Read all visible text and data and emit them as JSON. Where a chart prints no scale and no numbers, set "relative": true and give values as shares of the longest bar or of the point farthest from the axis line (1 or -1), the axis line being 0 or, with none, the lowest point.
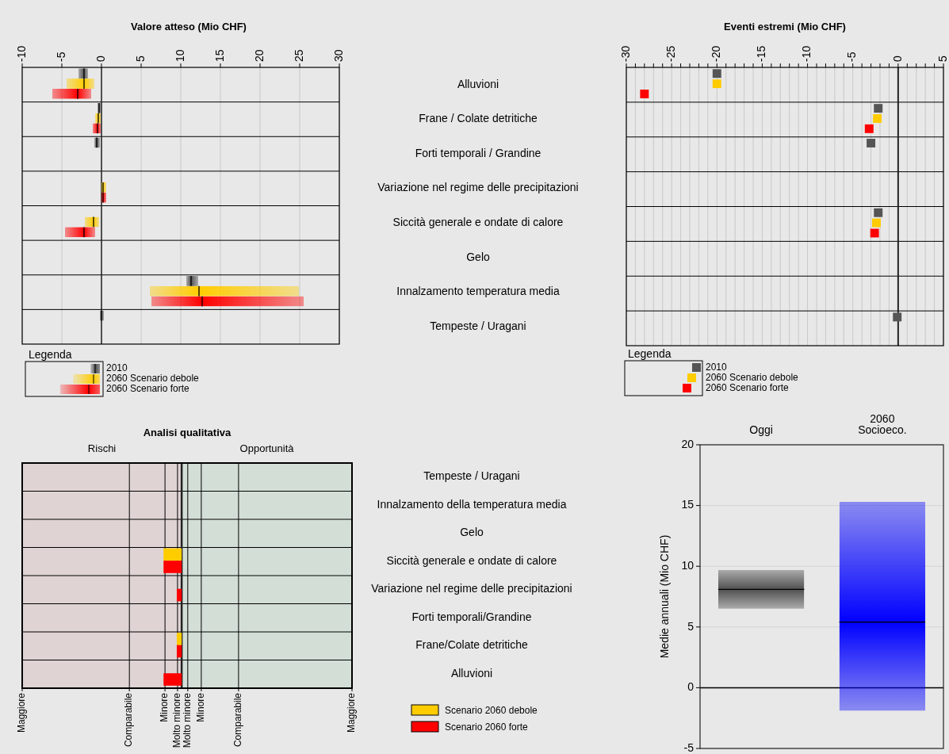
{
  "chart_data": [
    {
      "type": "box",
      "orientation": "horizontal",
      "title": "Valore atteso (Mio CHF)",
      "categories": [
        "Alluvioni",
        "Frane / Colate detritiche",
        "Forti temporali / Grandine",
        "Variazione nel regime delle precipitazioni",
        "Siccità generale e ondate di calore",
        "Gelo",
        "Innalzamento temperatura media",
        "Tempeste / Uragani"
      ],
      "xlim": [
        -10,
        30
      ],
      "xticks": [
        -10,
        -5,
        0,
        5,
        10,
        15,
        20,
        25,
        30
      ],
      "grid": "x",
      "legend": "bottom left",
      "legend_title": "Legenda",
      "ref_lines": [
        {
          "axis": "x",
          "value": 0
        }
      ],
      "series": [
        {
          "name": "2010",
          "color": "#505050",
          "boxes": [
            {
              "low": -2.9,
              "q1": -2.9,
              "median": -2.2,
              "q3": -1.7,
              "high": -1.7
            },
            {
              "low": -0.5,
              "q1": -0.5,
              "median": -0.3,
              "q3": -0.1,
              "high": -0.1
            },
            {
              "low": -0.9,
              "q1": -0.9,
              "median": -0.6,
              "q3": -0.2,
              "high": -0.2
            },
            null,
            null,
            null,
            {
              "low": 10.7,
              "q1": 10.7,
              "median": 11.3,
              "q3": 12.2,
              "high": 12.2
            },
            {
              "low": -0.2,
              "q1": -0.2,
              "median": 0,
              "q3": 0.3,
              "high": 0.3
            }
          ]
        },
        {
          "name": "2060 Scenario debole",
          "color": "#ffcc00",
          "boxes": [
            {
              "low": -4.4,
              "q1": -4.4,
              "median": -2.2,
              "q3": -0.9,
              "high": -0.9
            },
            {
              "low": -0.8,
              "q1": -0.8,
              "median": -0.4,
              "q3": -0.1,
              "high": -0.1
            },
            null,
            {
              "low": 0,
              "q1": 0,
              "median": 0.2,
              "q3": 0.6,
              "high": 0.6
            },
            {
              "low": -2.1,
              "q1": -2.1,
              "median": -1,
              "q3": -0.3,
              "high": -0.3
            },
            null,
            {
              "low": 6.1,
              "q1": 6.1,
              "median": 12.3,
              "q3": 24.9,
              "high": 24.9
            },
            null
          ]
        },
        {
          "name": "2060 Scenario forte",
          "color": "#ff0000",
          "boxes": [
            {
              "low": -6.2,
              "q1": -6.2,
              "median": -3,
              "q3": -1.3,
              "high": -1.3
            },
            {
              "low": -1.1,
              "q1": -1.1,
              "median": -0.5,
              "q3": -0.1,
              "high": -0.1
            },
            null,
            {
              "low": 0,
              "q1": 0,
              "median": 0.2,
              "q3": 0.6,
              "high": 0.6
            },
            {
              "low": -4.6,
              "q1": -4.6,
              "median": -2.2,
              "q3": -0.8,
              "high": -0.8
            },
            null,
            {
              "low": 6.3,
              "q1": 6.3,
              "median": 12.7,
              "q3": 25.5,
              "high": 25.5
            },
            null
          ]
        }
      ]
    },
    {
      "type": "scatter",
      "orientation": "horizontal",
      "title": "Eventi estremi (Mio CHF)",
      "categories": [
        null,
        null,
        null,
        null,
        null,
        null,
        null,
        null
      ],
      "xlim": [
        -30,
        5
      ],
      "xticks": [
        -30,
        {
          "value": -29,
          "label": null
        },
        {
          "value": -28,
          "label": null
        },
        {
          "value": -27,
          "label": null
        },
        {
          "value": -26,
          "label": null
        },
        -25,
        {
          "value": -24,
          "label": null
        },
        {
          "value": -23,
          "label": null
        },
        {
          "value": -22,
          "label": null
        },
        {
          "value": -21,
          "label": null
        },
        -20,
        {
          "value": -19,
          "label": null
        },
        {
          "value": -18,
          "label": null
        },
        {
          "value": -17,
          "label": null
        },
        {
          "value": -16,
          "label": null
        },
        -15,
        {
          "value": -14,
          "label": null
        },
        {
          "value": -13,
          "label": null
        },
        {
          "value": -12,
          "label": null
        },
        {
          "value": -11,
          "label": null
        },
        -10,
        {
          "value": -9,
          "label": null
        },
        {
          "value": -8,
          "label": null
        },
        {
          "value": -7,
          "label": null
        },
        {
          "value": -6,
          "label": null
        },
        -5,
        {
          "value": -4,
          "label": null
        },
        {
          "value": -3,
          "label": null
        },
        {
          "value": -2,
          "label": null
        },
        {
          "value": -1,
          "label": null
        },
        0,
        {
          "value": 1,
          "label": null
        },
        {
          "value": 2,
          "label": null
        },
        {
          "value": 3,
          "label": null
        },
        {
          "value": 4,
          "label": null
        },
        5
      ],
      "grid": "x",
      "marker": "square",
      "legend": "bottom left",
      "legend_title": "Legenda",
      "ref_lines": [
        {
          "axis": "x",
          "value": 0
        }
      ],
      "series": [
        {
          "name": "2010",
          "color": "#555555",
          "values": [
            -20,
            -2.2,
            -3,
            null,
            -2.2,
            null,
            null,
            -0.1
          ]
        },
        {
          "name": "2060 Scenario debole",
          "color": "#ffcc00",
          "values": [
            -20,
            -2.3,
            null,
            null,
            -2.4,
            null,
            null,
            null
          ]
        },
        {
          "name": "2060 Scenario forte",
          "color": "#ff0000",
          "values": [
            -28,
            -3.2,
            null,
            null,
            -2.6,
            null,
            null,
            null
          ]
        }
      ]
    },
    {
      "type": "bar",
      "orientation": "horizontal",
      "relative": true,
      "title": "Analisi qualitativa",
      "categories": [
        "Tempeste / Uragani",
        "Innalzamento della temperatura media",
        "Gelo",
        "Siccità generale e ondate di calore",
        "Variazione nel regime delle precipitazioni",
        "Forti temporali/Grandine",
        "Frane/Colate detritiche",
        "Alluvioni"
      ],
      "grid": "x",
      "legend": "bottom right",
      "annotations": [
        "Maggiore",
        "Comparabile",
        "Minore",
        "Molto minore",
        "Molto minore",
        "Minore",
        "Comparabile",
        "Maggiore"
      ],
      "bands": [
        {
          "axis": "x",
          "from": -8.8,
          "to": 0,
          "label": "Rischi",
          "color": "#dfd3d3"
        },
        {
          "axis": "x",
          "from": 0,
          "to": 9.4,
          "label": "Opportunità",
          "color": "#d3dfd6"
        }
      ],
      "ref_lines": [
        {
          "axis": "x",
          "value": 0
        }
      ],
      "series": [
        {
          "name": "Scenario 2060 debole",
          "color": "#ffcc00",
          "values": [
            null,
            null,
            null,
            -1,
            null,
            null,
            -0.27,
            null
          ]
        },
        {
          "name": "Scenario 2060 forte",
          "color": "#ff0000",
          "values": [
            null,
            null,
            null,
            -1,
            -0.27,
            null,
            -0.27,
            -1
          ]
        }
      ]
    },
    {
      "type": "box",
      "categories": [
        "Oggi",
        "2060\nSocioeco."
      ],
      "ylabel": "Medie annuali (Mio CHF)",
      "ylim": [
        -5,
        20
      ],
      "yticks": [
        -5,
        0,
        5,
        10,
        15,
        20
      ],
      "grid": "y",
      "ref_lines": [
        {
          "axis": "y",
          "value": 0
        }
      ],
      "colors": [
        "#505050",
        "#0000ff"
      ],
      "boxes": [
        {
          "low": 6.5,
          "q1": 6.5,
          "median": 8.1,
          "q3": 9.7,
          "high": 9.7
        },
        {
          "low": -1.9,
          "q1": -1.9,
          "median": 5.4,
          "q3": 15.3,
          "high": 15.3
        }
      ]
    }
  ]
}
